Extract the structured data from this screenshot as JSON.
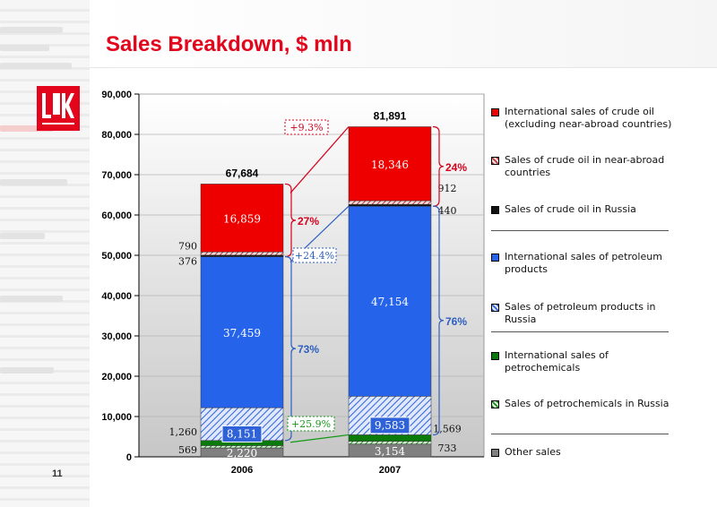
{
  "slide": {
    "title": "Sales Breakdown, $ mln",
    "page_number": "11",
    "logo_text": "LUK",
    "brand_color": "#e2051b"
  },
  "chart_data": {
    "type": "bar",
    "stacked": true,
    "categories": [
      "2006",
      "2007"
    ],
    "totals": [
      "67,684",
      "81,891"
    ],
    "ylim": [
      0,
      90000
    ],
    "yticks": [
      {
        "value": 0,
        "label": "0"
      },
      {
        "value": 10000,
        "label": "10,000"
      },
      {
        "value": 20000,
        "label": "20,000"
      },
      {
        "value": 30000,
        "label": "30,000"
      },
      {
        "value": 40000,
        "label": "40,000"
      },
      {
        "value": 50000,
        "label": "50,000"
      },
      {
        "value": 60000,
        "label": "60,000"
      },
      {
        "value": 70000,
        "label": "70,000"
      },
      {
        "value": 80000,
        "label": "80,000"
      },
      {
        "value": 90000,
        "label": "90,000"
      }
    ],
    "series": [
      {
        "name": "Other sales",
        "values": [
          2220,
          3154
        ],
        "labels": [
          "2,220",
          "3,154"
        ],
        "color": "#808080",
        "pattern": "solid",
        "label_style": "inside-light"
      },
      {
        "name": "Sales of petrochemicals in Russia",
        "values": [
          569,
          733
        ],
        "labels": [
          "569",
          "733"
        ],
        "color": "#1f8a1f",
        "pattern": "hatch-green",
        "label_style": "side"
      },
      {
        "name": "International sales of petrochemicals",
        "values": [
          1260,
          1569
        ],
        "labels": [
          "1,260",
          "1,569"
        ],
        "color": "#0a7a0a",
        "pattern": "solid",
        "label_style": "side"
      },
      {
        "name": "Sales of petroleum products in Russia",
        "values": [
          8151,
          9583
        ],
        "labels": [
          "8,151",
          "9,583"
        ],
        "color": "#2f62d8",
        "pattern": "hatch-blue",
        "label_style": "inside-box"
      },
      {
        "name": "International sales of petroleum products",
        "values": [
          37459,
          47154
        ],
        "labels": [
          "37,459",
          "47,154"
        ],
        "color": "#2563eb",
        "pattern": "solid",
        "label_style": "inside-light"
      },
      {
        "name": "Sales of crude oil in Russia",
        "values": [
          376,
          440
        ],
        "labels": [
          "376",
          "440"
        ],
        "color": "#111111",
        "pattern": "solid",
        "label_style": "side"
      },
      {
        "name": "Sales of crude oil in near-abroad countries",
        "values": [
          790,
          912
        ],
        "labels": [
          "790",
          "912"
        ],
        "color": "#b83a3a",
        "pattern": "hatch-red",
        "label_style": "side"
      },
      {
        "name": "International sales of crude oil (excluding near-abroad countries)",
        "values": [
          16859,
          18346
        ],
        "labels": [
          "16,859",
          "18,346"
        ],
        "color": "#ef0000",
        "pattern": "solid",
        "label_style": "inside-light"
      }
    ],
    "shares": [
      {
        "label": "27%",
        "category": "2006",
        "group": "crude",
        "color": "#d6001c"
      },
      {
        "label": "73%",
        "category": "2006",
        "group": "products",
        "color": "#2d5fc0"
      },
      {
        "label": "24%",
        "category": "2007",
        "group": "crude",
        "color": "#d6001c"
      },
      {
        "label": "76%",
        "category": "2007",
        "group": "products",
        "color": "#2d5fc0"
      }
    ],
    "growth": [
      {
        "label": "+9.3%",
        "color": "#d6001c"
      },
      {
        "label": "+24.4%",
        "color": "#2d5fc0"
      },
      {
        "label": "+25.9%",
        "color": "#139913"
      }
    ],
    "legend": [
      {
        "label": "International sales of crude oil (excluding near-abroad countries)",
        "color": "#ef0000",
        "pattern": "solid"
      },
      {
        "label": "Sales of crude oil in near-abroad countries",
        "color": "#b83a3a",
        "pattern": "hatch-red"
      },
      {
        "label": "Sales of crude oil in Russia",
        "color": "#111111",
        "pattern": "solid"
      },
      {
        "label": "International sales of petroleum products",
        "color": "#2563eb",
        "pattern": "solid"
      },
      {
        "label": "Sales of petroleum products in Russia",
        "color": "#2f62d8",
        "pattern": "hatch-blue"
      },
      {
        "label": "International sales of petrochemicals",
        "color": "#0a7a0a",
        "pattern": "solid"
      },
      {
        "label": "Sales of petrochemicals in Russia",
        "color": "#1f8a1f",
        "pattern": "hatch-green"
      },
      {
        "label": "Other sales",
        "color": "#808080",
        "pattern": "solid"
      }
    ],
    "grid": true,
    "legend_position": "right"
  }
}
